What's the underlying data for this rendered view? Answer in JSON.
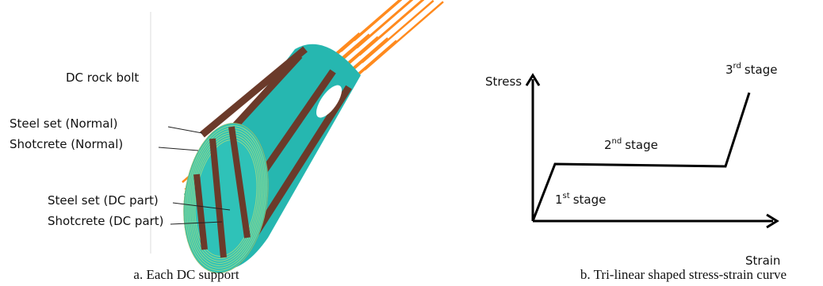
{
  "panel_a": {
    "labels": [
      "DC rock bolt",
      "Steel set (Normal)",
      "Shotcrete (Normal)",
      "Steel set (DC part)",
      "Shotcrete (DC part)"
    ],
    "caption": "a. Each DC support"
  },
  "panel_b": {
    "y_axis": "Stress",
    "x_axis": "Strain",
    "stages": [
      {
        "number": "1",
        "suffix": "st",
        "word": "stage"
      },
      {
        "number": "2",
        "suffix": "nd",
        "word": "stage"
      },
      {
        "number": "3",
        "suffix": "rd",
        "word": "stage"
      }
    ],
    "caption": "b. Tri-linear shaped stress-strain curve"
  }
}
